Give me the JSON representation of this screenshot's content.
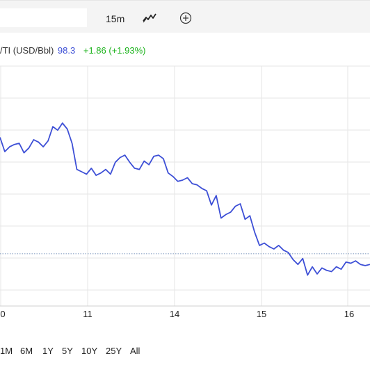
{
  "toolbar": {
    "interval": "15m",
    "chart_type_icon": "line-chart-icon",
    "compare_icon": "circle-plus-icon"
  },
  "legend": {
    "symbol": "/TI (USD/Bbl)",
    "price": "98.3",
    "change": "+1.86 (+1.93%)"
  },
  "colors": {
    "line": "#3d4fd6",
    "change_positive": "#1db31d",
    "grid": "#e6e6e6",
    "toolbar_bg": "#f4f4f4"
  },
  "range_buttons": [
    "1M",
    "6M",
    "1Y",
    "5Y",
    "10Y",
    "25Y",
    "All"
  ],
  "chart_data": {
    "type": "line",
    "x_tick_labels": [
      "0",
      "11",
      "14",
      "15",
      "16"
    ],
    "series": [
      {
        "name": "/TI (USD/Bbl)",
        "values": [
          98.2,
          97.0,
          97.4,
          97.6,
          97.7,
          96.9,
          97.3,
          98.0,
          97.8,
          97.4,
          97.9,
          99.1,
          98.8,
          99.4,
          98.9,
          97.7,
          95.5,
          95.3,
          95.1,
          95.6,
          95.0,
          95.2,
          95.5,
          95.1,
          96.1,
          96.5,
          96.7,
          96.1,
          95.6,
          95.5,
          96.2,
          95.9,
          96.6,
          96.7,
          96.4,
          95.2,
          94.9,
          94.5,
          94.6,
          94.8,
          94.3,
          94.2,
          93.9,
          93.7,
          92.5,
          93.3,
          91.4,
          91.7,
          91.9,
          92.4,
          92.6,
          91.3,
          91.6,
          90.2,
          89.1,
          89.3,
          89.0,
          88.8,
          89.1,
          88.7,
          88.5,
          87.9,
          87.5,
          88.0,
          86.6,
          87.3,
          86.7,
          87.2,
          87.0,
          86.9,
          87.3,
          87.1,
          87.7,
          87.6,
          87.8,
          87.5,
          87.4,
          87.5
        ]
      }
    ],
    "reference_line": {
      "style": "dotted",
      "value": 88.4
    },
    "grid": true,
    "legend_position": "top-left"
  }
}
